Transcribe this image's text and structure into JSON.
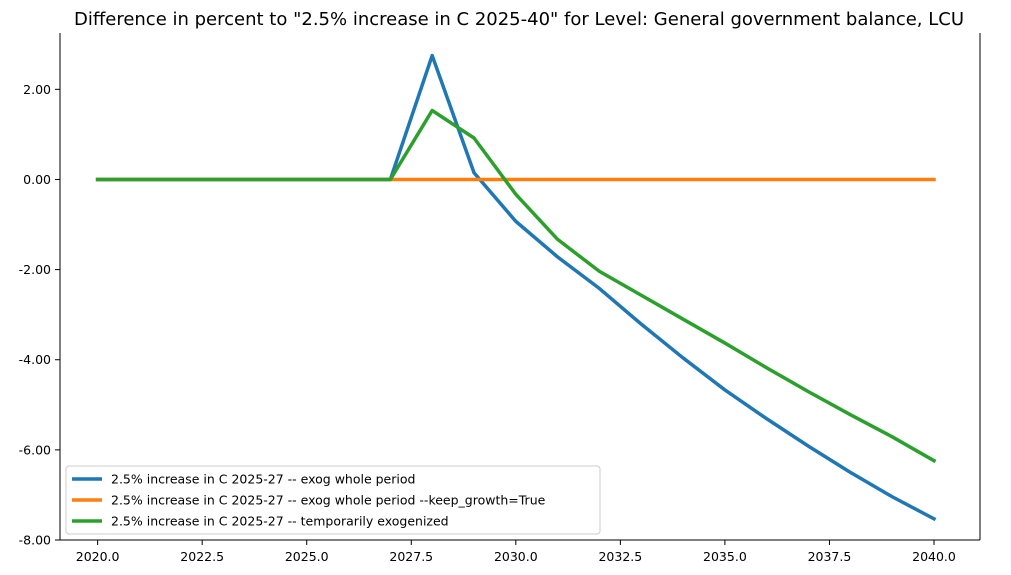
{
  "chart_data": {
    "type": "line",
    "title": "Difference in percent to \"2.5% increase in C 2025-40\" for Level: General government balance, LCU",
    "xlabel": "",
    "ylabel": "",
    "xlim": [
      2019.1,
      2041.1
    ],
    "ylim": [
      -8.0,
      3.25
    ],
    "xticks": [
      2020.0,
      2022.5,
      2025.0,
      2027.5,
      2030.0,
      2032.5,
      2035.0,
      2037.5,
      2040.0
    ],
    "xtick_labels": [
      "2020.0",
      "2022.5",
      "2025.0",
      "2027.5",
      "2030.0",
      "2032.5",
      "2035.0",
      "2037.5",
      "2040.0"
    ],
    "yticks": [
      2.0,
      0.0,
      -2.0,
      -4.0,
      -6.0,
      -8.0
    ],
    "ytick_labels": [
      "2.00",
      "0.00",
      "-2.00",
      "-4.00",
      "-6.00",
      "-8.00"
    ],
    "grid": false,
    "legend_position": "bottom-left",
    "x": [
      2020,
      2021,
      2022,
      2023,
      2024,
      2025,
      2026,
      2027,
      2028,
      2029,
      2030,
      2031,
      2032,
      2033,
      2034,
      2035,
      2036,
      2037,
      2038,
      2039,
      2040
    ],
    "series": [
      {
        "name": "2.5% increase in C 2025-27 -- exog whole period",
        "color": "#1f77b4",
        "values": [
          0,
          0,
          0,
          0,
          0,
          0,
          0,
          0,
          2.75,
          0.15,
          -0.93,
          -1.72,
          -2.42,
          -3.21,
          -3.96,
          -4.67,
          -5.31,
          -5.92,
          -6.5,
          -7.04,
          -7.53
        ]
      },
      {
        "name": "2.5% increase in C 2025-27 -- exog whole period --keep_growth=True",
        "color": "#ff7f0e",
        "values": [
          0,
          0,
          0,
          0,
          0,
          0,
          0,
          0,
          0,
          0,
          0,
          0,
          0,
          0,
          0,
          0,
          0,
          0,
          0,
          0,
          0
        ]
      },
      {
        "name": "2.5% increase in C 2025-27 -- temporarily exogenized",
        "color": "#2ca02c",
        "values": [
          0,
          0,
          0,
          0,
          0,
          0,
          0,
          0,
          1.53,
          0.92,
          -0.33,
          -1.33,
          -2.04,
          -2.57,
          -3.1,
          -3.63,
          -4.18,
          -4.71,
          -5.22,
          -5.71,
          -6.24
        ]
      }
    ]
  }
}
